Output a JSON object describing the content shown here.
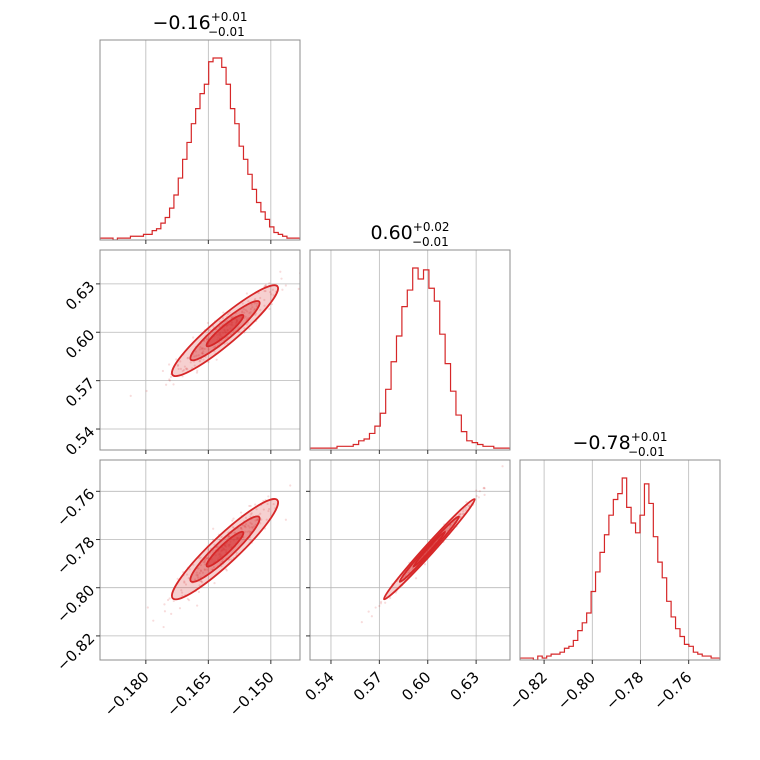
{
  "chart_data": {
    "type": "corner",
    "color": "#d62728",
    "params": [
      {
        "title_main": "−0.16",
        "title_plus": "+0.01",
        "title_minus": "−0.01",
        "median": -0.161,
        "sigma": 0.0052,
        "range": [
          -0.191,
          -0.143
        ],
        "ticks": [
          -0.18,
          -0.165,
          -0.15
        ],
        "tick_labels": [
          "−0.180",
          "−0.165",
          "−0.150"
        ]
      },
      {
        "title_main": "0.60",
        "title_plus": "+0.02",
        "title_minus": "−0.01",
        "median": 0.601,
        "sigma": 0.0115,
        "range": [
          0.527,
          0.651
        ],
        "ticks": [
          0.54,
          0.57,
          0.6,
          0.63
        ],
        "tick_labels": [
          "0.54",
          "0.57",
          "0.60",
          "0.63"
        ]
      },
      {
        "title_main": "−0.78",
        "title_plus": "+0.01",
        "title_minus": "−0.01",
        "median": -0.784,
        "sigma": 0.0085,
        "range": [
          -0.83,
          -0.747
        ],
        "ticks": [
          -0.82,
          -0.8,
          -0.78,
          -0.76
        ],
        "tick_labels": [
          "−0.82",
          "−0.80",
          "−0.78",
          "−0.76"
        ]
      }
    ],
    "histograms": [
      [
        1,
        1,
        1,
        0,
        1,
        1,
        1,
        2,
        2,
        2,
        3,
        3,
        5,
        6,
        9,
        12,
        17,
        24,
        33,
        43,
        52,
        62,
        70,
        78,
        83,
        95,
        97,
        97,
        92,
        83,
        70,
        62,
        50,
        43,
        35,
        27,
        20,
        15,
        11,
        7,
        4,
        3,
        2,
        1,
        1,
        1
      ],
      [
        1,
        1,
        1,
        1,
        1,
        2,
        2,
        2,
        3,
        5,
        6,
        9,
        13,
        20,
        33,
        48,
        62,
        78,
        87,
        99,
        93,
        98,
        88,
        81,
        63,
        47,
        32,
        19,
        10,
        5,
        4,
        3,
        2,
        2,
        1,
        1,
        1
      ],
      [
        1,
        1,
        1,
        0,
        2,
        1,
        2,
        3,
        3,
        4,
        6,
        7,
        10,
        15,
        19,
        24,
        35,
        45,
        55,
        64,
        74,
        82,
        85,
        93,
        78,
        70,
        65,
        74,
        90,
        80,
        63,
        50,
        42,
        30,
        22,
        16,
        12,
        8,
        7,
        4,
        3,
        2,
        2,
        1,
        1
      ]
    ],
    "correlations": {
      "1-0": 0.93,
      "2-0": 0.93,
      "2-1": 0.99
    }
  }
}
